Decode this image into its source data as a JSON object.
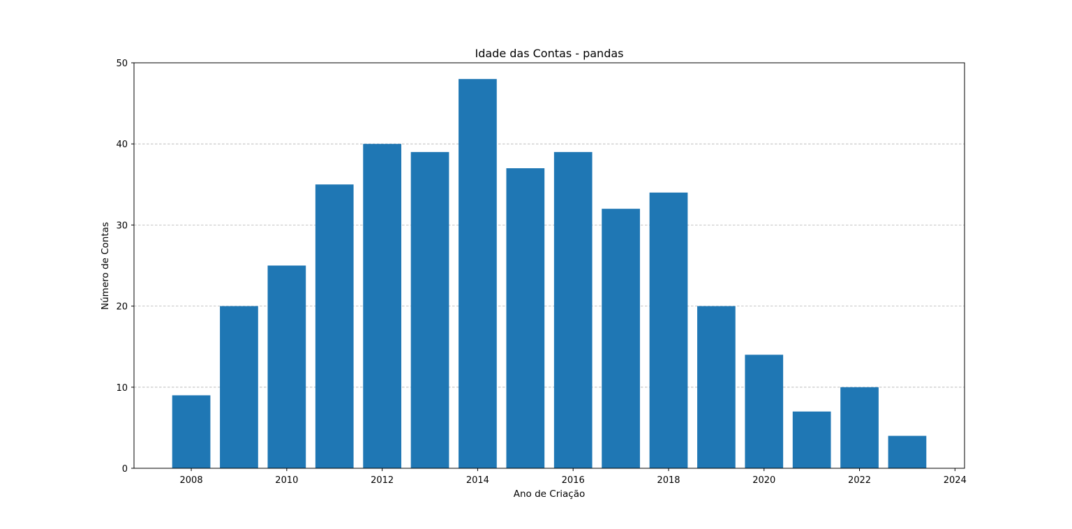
{
  "chart_data": {
    "type": "bar",
    "title": "Idade das Contas - pandas",
    "xlabel": "Ano de Criação",
    "ylabel": "Número de Contas",
    "x": [
      2008,
      2009,
      2010,
      2011,
      2012,
      2013,
      2014,
      2015,
      2016,
      2017,
      2018,
      2019,
      2020,
      2021,
      2022,
      2023
    ],
    "values": [
      9,
      20,
      25,
      35,
      40,
      39,
      48,
      37,
      39,
      32,
      34,
      20,
      14,
      7,
      10,
      4
    ],
    "xlim": [
      2006.8,
      2024.2
    ],
    "ylim": [
      0,
      50
    ],
    "xticks": [
      2008,
      2010,
      2012,
      2014,
      2016,
      2018,
      2020,
      2022,
      2024
    ],
    "yticks": [
      0,
      10,
      20,
      30,
      40,
      50
    ],
    "grid": "y-axis dashed",
    "bar_color": "#1f77b4"
  }
}
